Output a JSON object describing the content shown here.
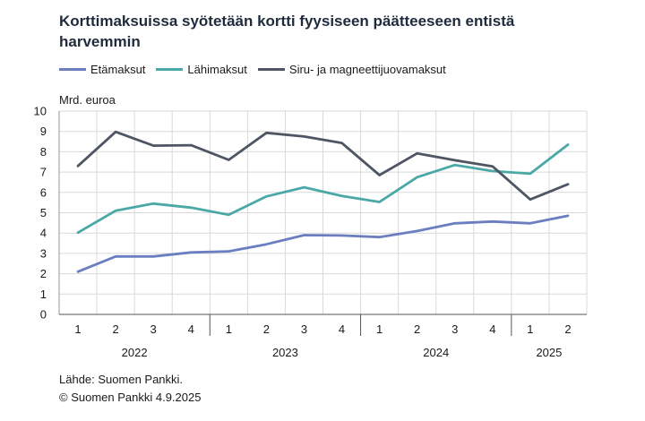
{
  "title": "Korttimaksuissa syötetään kortti fyysiseen päätteeseen entistä harvemmin",
  "legend": [
    {
      "label": "Etämaksut",
      "color": "#6b7ec0"
    },
    {
      "label": "Lähimaksut",
      "color": "#4aa8a6"
    },
    {
      "label": "Siru- ja magneettijuovamaksut",
      "color": "#4f5663"
    }
  ],
  "source": [
    "Lähde: Suomen Pankki.",
    "© Suomen Pankki 4.9.2025"
  ],
  "chart_data": {
    "type": "line",
    "title": "Korttimaksuissa syötetään kortti fyysiseen päätteeseen entistä harvemmin",
    "ylabel": "Mrd. euroa",
    "xlabel": "",
    "ylim": [
      0,
      10
    ],
    "yticks": [
      "0",
      "1",
      "2",
      "3",
      "4",
      "5",
      "6",
      "7",
      "8",
      "9",
      "10"
    ],
    "grid": true,
    "legend_position": "top-left",
    "categories": [
      "1",
      "2",
      "3",
      "4",
      "1",
      "2",
      "3",
      "4",
      "1",
      "2",
      "3",
      "4",
      "1",
      "2"
    ],
    "years": [
      {
        "label": "2022",
        "quarters": 4
      },
      {
        "label": "2023",
        "quarters": 4
      },
      {
        "label": "2024",
        "quarters": 4
      },
      {
        "label": "2025",
        "quarters": 2
      }
    ],
    "series": [
      {
        "name": "Etämaksut",
        "color": "#6b7ec0",
        "values": [
          2.1,
          2.85,
          2.85,
          3.05,
          3.1,
          3.45,
          3.9,
          3.88,
          3.8,
          4.1,
          4.48,
          4.57,
          4.48,
          4.85
        ]
      },
      {
        "name": "Lähimaksut",
        "color": "#4aa8a6",
        "values": [
          4.02,
          5.1,
          5.45,
          5.25,
          4.9,
          5.8,
          6.25,
          5.83,
          5.53,
          6.75,
          7.35,
          7.05,
          6.92,
          8.35
        ]
      },
      {
        "name": "Siru- ja magneettijuovamaksut",
        "color": "#4f5663",
        "values": [
          7.3,
          8.98,
          8.3,
          8.32,
          7.6,
          8.93,
          8.75,
          8.43,
          6.85,
          7.92,
          7.58,
          7.28,
          5.65,
          6.4
        ]
      }
    ]
  }
}
